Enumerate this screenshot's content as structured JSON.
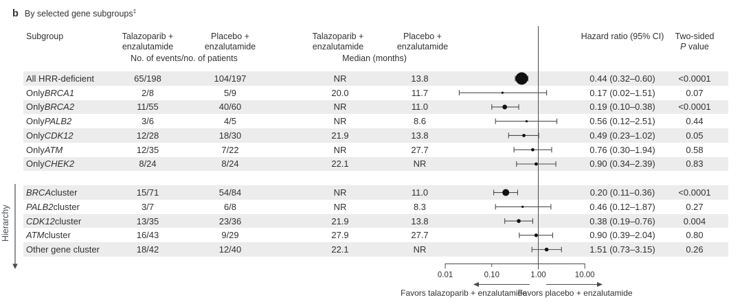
{
  "title": {
    "panel": "b",
    "text": "By selected gene subgroups",
    "footnote_mark": "‡"
  },
  "header": {
    "subgroup": "Subgroup",
    "arm_columns": [
      {
        "line1": "Talazoparib +",
        "line2": "enzalutamide"
      },
      {
        "line1": "Placebo +",
        "line2": "enzalutamide"
      },
      {
        "line1": "Talazoparib +",
        "line2": "enzalutamide"
      },
      {
        "line1": "Placebo +",
        "line2": "enzalutamide"
      }
    ],
    "events_span": "No. of events/no. of patients",
    "median_span": "Median (months)",
    "hazard_ratio": "Hazard ratio (95% CI)",
    "p_value": {
      "line1": "Two-sided",
      "p_italic": "P",
      "line2_rest": " value"
    }
  },
  "hierarchy_label": "Hierarchy",
  "axis": {
    "tick_labels": [
      "0.01",
      "0.10",
      "1.00",
      "10.00"
    ],
    "tick_values": [
      0.01,
      0.1,
      1,
      10
    ]
  },
  "favors": {
    "left": "Favors talazoparib + enzalutamide",
    "right": "Favors placebo + enzalutamide"
  },
  "chart_data": {
    "type": "forest",
    "x_scale": "log10",
    "x_range": [
      0.01,
      10
    ],
    "reference_line": 1.0,
    "columns": [
      "Subgroup",
      "Talazoparib + enzalutamide events/patients",
      "Placebo + enzalutamide events/patients",
      "Talazoparib + enzalutamide median months",
      "Placebo + enzalutamide median months",
      "Hazard ratio (95% CI)",
      "Two-sided P value"
    ],
    "rows": [
      {
        "slot": 0,
        "shaded": true,
        "label_pre": "All HRR-deficient",
        "label_italic": "",
        "label_post": "",
        "events_talazoparib": "65/198",
        "events_placebo": "104/197",
        "median_talazoparib": "NR",
        "median_placebo": "13.8",
        "hr": 0.44,
        "ci_low": 0.32,
        "ci_high": 0.6,
        "hr_text": "0.44 (0.32–0.60)",
        "p_value": "<0.0001",
        "marker_r": 9
      },
      {
        "slot": 1,
        "shaded": false,
        "label_pre": "Only ",
        "label_italic": "BRCA1",
        "label_post": "",
        "events_talazoparib": "2/8",
        "events_placebo": "5/9",
        "median_talazoparib": "20.0",
        "median_placebo": "11.7",
        "hr": 0.17,
        "ci_low": 0.02,
        "ci_high": 1.51,
        "hr_text": "0.17 (0.02–1.51)",
        "p_value": "0.07",
        "marker_r": 1.6
      },
      {
        "slot": 2,
        "shaded": true,
        "label_pre": "Only ",
        "label_italic": "BRCA2",
        "label_post": "",
        "events_talazoparib": "11/55",
        "events_placebo": "40/60",
        "median_talazoparib": "NR",
        "median_placebo": "11.0",
        "hr": 0.19,
        "ci_low": 0.1,
        "ci_high": 0.38,
        "hr_text": "0.19 (0.10–0.38)",
        "p_value": "<0.0001",
        "marker_r": 3.4
      },
      {
        "slot": 3,
        "shaded": false,
        "label_pre": "Only ",
        "label_italic": "PALB2",
        "label_post": "",
        "events_talazoparib": "3/6",
        "events_placebo": "4/5",
        "median_talazoparib": "NR",
        "median_placebo": "8.6",
        "hr": 0.56,
        "ci_low": 0.12,
        "ci_high": 2.51,
        "hr_text": "0.56 (0.12–2.51)",
        "p_value": "0.44",
        "marker_r": 1.6
      },
      {
        "slot": 4,
        "shaded": true,
        "label_pre": "Only ",
        "label_italic": "CDK12",
        "label_post": "",
        "events_talazoparib": "12/28",
        "events_placebo": "18/30",
        "median_talazoparib": "21.9",
        "median_placebo": "13.8",
        "hr": 0.49,
        "ci_low": 0.23,
        "ci_high": 1.02,
        "hr_text": "0.49 (0.23–1.02)",
        "p_value": "0.05",
        "marker_r": 2.4
      },
      {
        "slot": 5,
        "shaded": false,
        "label_pre": "Only ",
        "label_italic": "ATM",
        "label_post": "",
        "events_talazoparib": "12/35",
        "events_placebo": "7/22",
        "median_talazoparib": "NR",
        "median_placebo": "27.7",
        "hr": 0.76,
        "ci_low": 0.3,
        "ci_high": 1.94,
        "hr_text": "0.76 (0.30–1.94)",
        "p_value": "0.58",
        "marker_r": 2.4
      },
      {
        "slot": 6,
        "shaded": true,
        "label_pre": "Only ",
        "label_italic": "CHEK2",
        "label_post": "",
        "events_talazoparib": "8/24",
        "events_placebo": "8/24",
        "median_talazoparib": "22.1",
        "median_placebo": "NR",
        "hr": 0.9,
        "ci_low": 0.34,
        "ci_high": 2.39,
        "hr_text": "0.90 (0.34–2.39)",
        "p_value": "0.83",
        "marker_r": 2.4
      },
      {
        "slot": 8,
        "shaded": true,
        "label_pre": "",
        "label_italic": "BRCA",
        "label_post": " cluster",
        "events_talazoparib": "15/71",
        "events_placebo": "54/84",
        "median_talazoparib": "NR",
        "median_placebo": "11.0",
        "hr": 0.2,
        "ci_low": 0.11,
        "ci_high": 0.36,
        "hr_text": "0.20 (0.11–0.36)",
        "p_value": "<0.0001",
        "marker_r": 5
      },
      {
        "slot": 9,
        "shaded": false,
        "label_pre": "",
        "label_italic": "PALB2",
        "label_post": " cluster",
        "events_talazoparib": "3/7",
        "events_placebo": "6/8",
        "median_talazoparib": "NR",
        "median_placebo": "8.3",
        "hr": 0.46,
        "ci_low": 0.12,
        "ci_high": 1.87,
        "hr_text": "0.46 (0.12–1.87)",
        "p_value": "0.27",
        "marker_r": 1.6
      },
      {
        "slot": 10,
        "shaded": true,
        "label_pre": "",
        "label_italic": "CDK12",
        "label_post": " cluster",
        "events_talazoparib": "13/35",
        "events_placebo": "23/36",
        "median_talazoparib": "21.9",
        "median_placebo": "13.8",
        "hr": 0.38,
        "ci_low": 0.19,
        "ci_high": 0.76,
        "hr_text": "0.38 (0.19–0.76)",
        "p_value": "0.004",
        "marker_r": 2.8
      },
      {
        "slot": 11,
        "shaded": false,
        "label_pre": "",
        "label_italic": "ATM",
        "label_post": " cluster",
        "events_talazoparib": "16/43",
        "events_placebo": "9/29",
        "median_talazoparib": "27.9",
        "median_placebo": "27.7",
        "hr": 0.9,
        "ci_low": 0.39,
        "ci_high": 2.04,
        "hr_text": "0.90 (0.39–2.04)",
        "p_value": "0.80",
        "marker_r": 2.6
      },
      {
        "slot": 12,
        "shaded": true,
        "label_pre": "Other gene cluster",
        "label_italic": "",
        "label_post": "",
        "events_talazoparib": "18/42",
        "events_placebo": "12/40",
        "median_talazoparib": "22.1",
        "median_placebo": "NR",
        "hr": 1.51,
        "ci_low": 0.73,
        "ci_high": 3.15,
        "hr_text": "1.51 (0.73–3.15)",
        "p_value": "0.26",
        "marker_r": 2.8
      }
    ]
  }
}
